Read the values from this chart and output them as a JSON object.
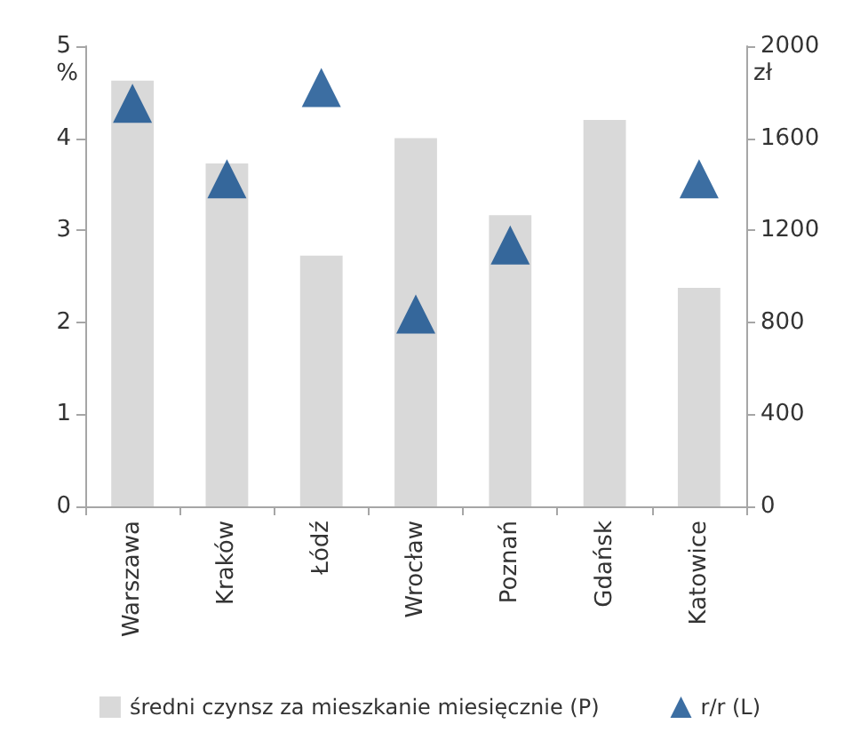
{
  "chart_data": {
    "type": "bar",
    "ylabel": "%",
    "y2label": "zł",
    "categories": [
      "Warszawa",
      "Kraków",
      "Łódź",
      "Wrocław",
      "Poznań",
      "Gdańsk",
      "Katowice"
    ],
    "series": [
      {
        "name": "średni czynsz za mieszkanie miesięcznie (P)",
        "axis": "y2",
        "color": "#d9d9d9",
        "values": [
          1850,
          1490,
          1090,
          1600,
          1265,
          1680,
          950
        ]
      },
      {
        "name": "r/r (L)",
        "type": "scatter",
        "axis": "y",
        "color": "#0b4a8b",
        "values": [
          4.38,
          3.56,
          4.55,
          2.09,
          2.84,
          null,
          3.56
        ]
      }
    ],
    "ylim": [
      0,
      5
    ],
    "yticks": [
      0,
      1,
      2,
      3,
      4,
      5
    ],
    "y2lim": [
      0,
      2000
    ],
    "y2ticks": [
      0,
      400,
      800,
      1200,
      1600,
      2000
    ],
    "marker": "triangle",
    "grid": false,
    "legend": "bottom"
  }
}
